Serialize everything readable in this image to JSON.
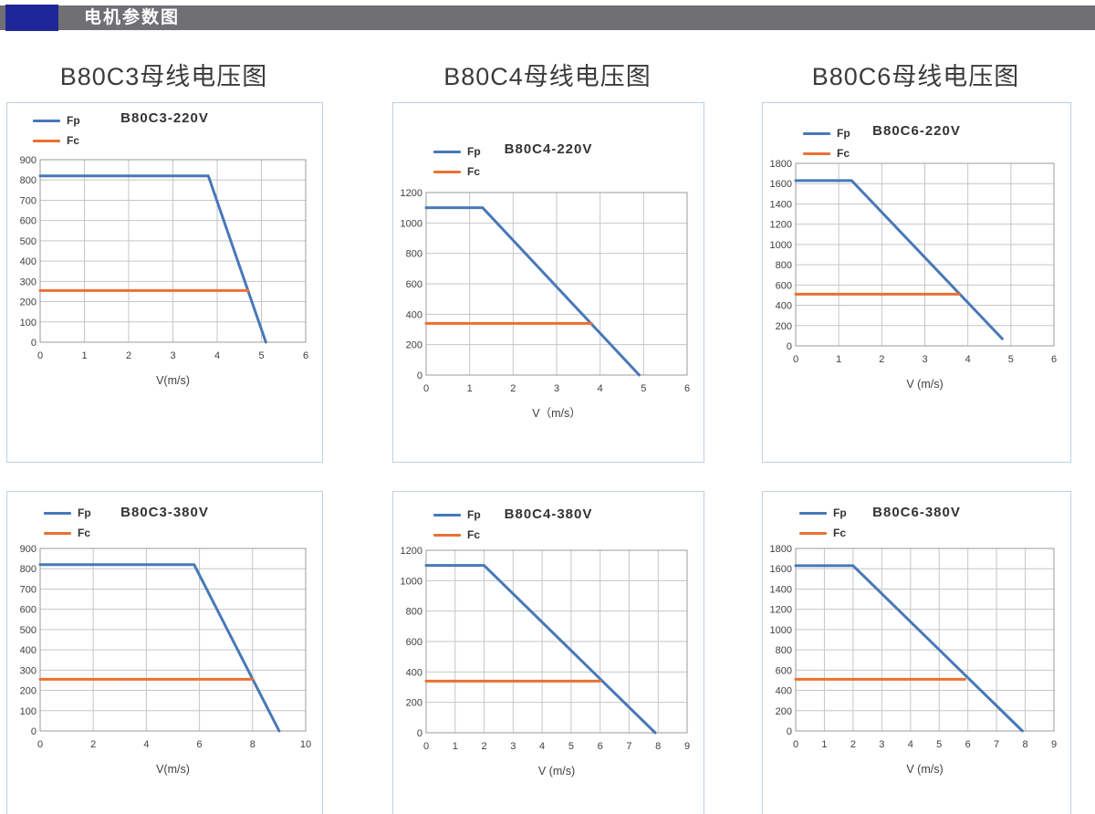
{
  "page": {
    "header": {
      "title": "电机参数图"
    }
  },
  "colors": {
    "header_bar": "#6f6f74",
    "header_chip": "#1f2697",
    "fp_line": "#4878b8",
    "fc_line": "#e97132"
  },
  "columns": [
    {
      "heading": "B80C3母线电压图"
    },
    {
      "heading": "B80C4母线电压图"
    },
    {
      "heading": "B80C6母线电压图"
    }
  ],
  "chart_data": [
    {
      "type": "line",
      "title": "B80C3-220V",
      "xlabel": "V(m/s)",
      "xlim": [
        0,
        6
      ],
      "xstep": 1,
      "ylim": [
        0,
        900
      ],
      "ystep": 100,
      "grid": true,
      "legend": [
        "Fp",
        "Fc"
      ],
      "series": [
        {
          "name": "Fp",
          "color": "#4878b8",
          "points": [
            [
              0,
              820
            ],
            [
              3.8,
              820
            ],
            [
              5.1,
              0
            ]
          ]
        },
        {
          "name": "Fc",
          "color": "#e97132",
          "points": [
            [
              0,
              255
            ],
            [
              4.7,
              255
            ]
          ]
        }
      ]
    },
    {
      "type": "line",
      "title": "B80C4-220V",
      "xlabel": "V（m/s）",
      "xlim": [
        0,
        6
      ],
      "xstep": 1,
      "ylim": [
        0,
        1200
      ],
      "ystep": 200,
      "grid": true,
      "legend": [
        "Fp",
        "Fc"
      ],
      "series": [
        {
          "name": "Fp",
          "color": "#4878b8",
          "points": [
            [
              0,
              1100
            ],
            [
              1.3,
              1100
            ],
            [
              4.9,
              0
            ]
          ]
        },
        {
          "name": "Fc",
          "color": "#e97132",
          "points": [
            [
              0,
              340
            ],
            [
              3.8,
              340
            ]
          ]
        }
      ]
    },
    {
      "type": "line",
      "title": "B80C6-220V",
      "xlabel": "V (m/s)",
      "xlim": [
        0,
        6
      ],
      "xstep": 1,
      "ylim": [
        0,
        1800
      ],
      "ystep": 200,
      "grid": true,
      "legend": [
        "Fp",
        "Fc"
      ],
      "series": [
        {
          "name": "Fp",
          "color": "#4878b8",
          "points": [
            [
              0,
              1630
            ],
            [
              1.3,
              1630
            ],
            [
              4.8,
              70
            ]
          ]
        },
        {
          "name": "Fc",
          "color": "#e97132",
          "points": [
            [
              0,
              510
            ],
            [
              3.8,
              510
            ]
          ]
        }
      ]
    },
    {
      "type": "line",
      "title": "B80C3-380V",
      "xlabel": "V(m/s)",
      "xlim": [
        0,
        10
      ],
      "xstep": 2,
      "ylim": [
        0,
        900
      ],
      "ystep": 100,
      "grid": true,
      "legend": [
        "Fp",
        "Fc"
      ],
      "series": [
        {
          "name": "Fp",
          "color": "#4878b8",
          "points": [
            [
              0,
              820
            ],
            [
              5.8,
              820
            ],
            [
              9.0,
              0
            ]
          ]
        },
        {
          "name": "Fc",
          "color": "#e97132",
          "points": [
            [
              0,
              255
            ],
            [
              8.0,
              255
            ]
          ]
        }
      ]
    },
    {
      "type": "line",
      "title": "B80C4-380V",
      "xlabel": "V (m/s)",
      "xlim": [
        0,
        9
      ],
      "xstep": 1,
      "ylim": [
        0,
        1200
      ],
      "ystep": 200,
      "grid": true,
      "legend": [
        "Fp",
        "Fc"
      ],
      "series": [
        {
          "name": "Fp",
          "color": "#4878b8",
          "points": [
            [
              0,
              1100
            ],
            [
              2.0,
              1100
            ],
            [
              7.9,
              0
            ]
          ]
        },
        {
          "name": "Fc",
          "color": "#e97132",
          "points": [
            [
              0,
              340
            ],
            [
              6.0,
              340
            ]
          ]
        }
      ]
    },
    {
      "type": "line",
      "title": "B80C6-380V",
      "xlabel": "V (m/s)",
      "xlim": [
        0,
        9
      ],
      "xstep": 1,
      "ylim": [
        0,
        1800
      ],
      "ystep": 200,
      "grid": true,
      "legend": [
        "Fp",
        "Fc"
      ],
      "series": [
        {
          "name": "Fp",
          "color": "#4878b8",
          "points": [
            [
              0,
              1630
            ],
            [
              2.0,
              1630
            ],
            [
              7.9,
              0
            ]
          ]
        },
        {
          "name": "Fc",
          "color": "#e97132",
          "points": [
            [
              0,
              510
            ],
            [
              5.9,
              510
            ]
          ]
        }
      ]
    }
  ]
}
